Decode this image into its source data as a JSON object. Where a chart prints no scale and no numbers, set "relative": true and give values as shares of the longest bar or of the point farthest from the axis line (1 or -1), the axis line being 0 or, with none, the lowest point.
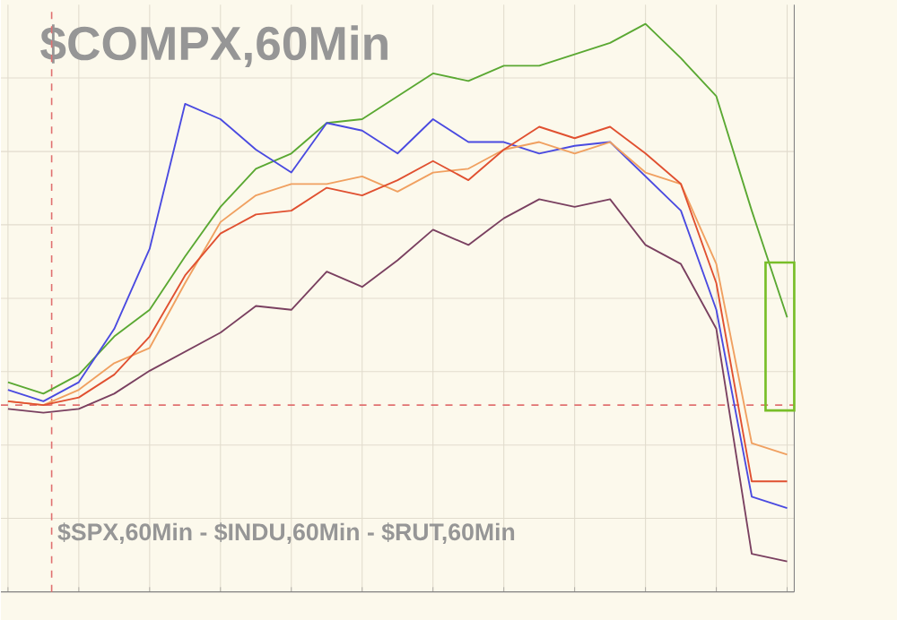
{
  "chart_data": {
    "type": "line",
    "title": "$COMPX,60Min",
    "subtitle": "$SPX,60Min - $INDU,60Min - $RUT,60Min",
    "relative": true,
    "grid": true,
    "categories": [
      null,
      null,
      null,
      null,
      null,
      null,
      null,
      null,
      null,
      null,
      null,
      null,
      null,
      null,
      null,
      null,
      null,
      null,
      null,
      null,
      null,
      null,
      null
    ],
    "series": [
      {
        "color": "#5aa832",
        "values": [
          0.06,
          0.03,
          0.08,
          0.18,
          0.25,
          0.39,
          0.52,
          0.62,
          0.66,
          0.74,
          0.75,
          0.81,
          0.87,
          0.85,
          0.89,
          0.89,
          0.92,
          0.95,
          1.0,
          0.91,
          0.81,
          0.51,
          0.23
        ]
      },
      {
        "color": "#4a4ae0",
        "values": [
          0.04,
          0.01,
          0.06,
          0.2,
          0.41,
          0.79,
          0.75,
          0.67,
          0.61,
          0.74,
          0.72,
          0.66,
          0.75,
          0.69,
          0.69,
          0.66,
          0.68,
          0.69,
          0.6,
          0.51,
          0.25,
          -0.24,
          -0.27
        ]
      },
      {
        "color": "#f0a060",
        "values": [
          0.01,
          0,
          0.04,
          0.11,
          0.15,
          0.32,
          0.48,
          0.55,
          0.58,
          0.58,
          0.6,
          0.56,
          0.61,
          0.62,
          0.67,
          0.69,
          0.66,
          0.69,
          0.61,
          0.58,
          0.37,
          -0.1,
          -0.13
        ]
      },
      {
        "color": "#e05030",
        "values": [
          0.01,
          0,
          0.02,
          0.08,
          0.18,
          0.34,
          0.45,
          0.5,
          0.51,
          0.57,
          0.55,
          0.59,
          0.64,
          0.59,
          0.67,
          0.73,
          0.7,
          0.73,
          0.66,
          0.58,
          0.32,
          -0.2,
          -0.2
        ]
      },
      {
        "color": "#7a4060",
        "values": [
          -0.01,
          -0.02,
          -0.01,
          0.03,
          0.09,
          0.14,
          0.19,
          0.26,
          0.25,
          0.35,
          0.31,
          0.38,
          0.46,
          0.42,
          0.49,
          0.54,
          0.52,
          0.54,
          0.42,
          0.37,
          0.2,
          -0.39,
          -0.41
        ]
      }
    ],
    "ref_lines": [
      {
        "axis": "y",
        "value": 0,
        "color": "#e07070",
        "line_style": "dashed"
      }
    ]
  }
}
